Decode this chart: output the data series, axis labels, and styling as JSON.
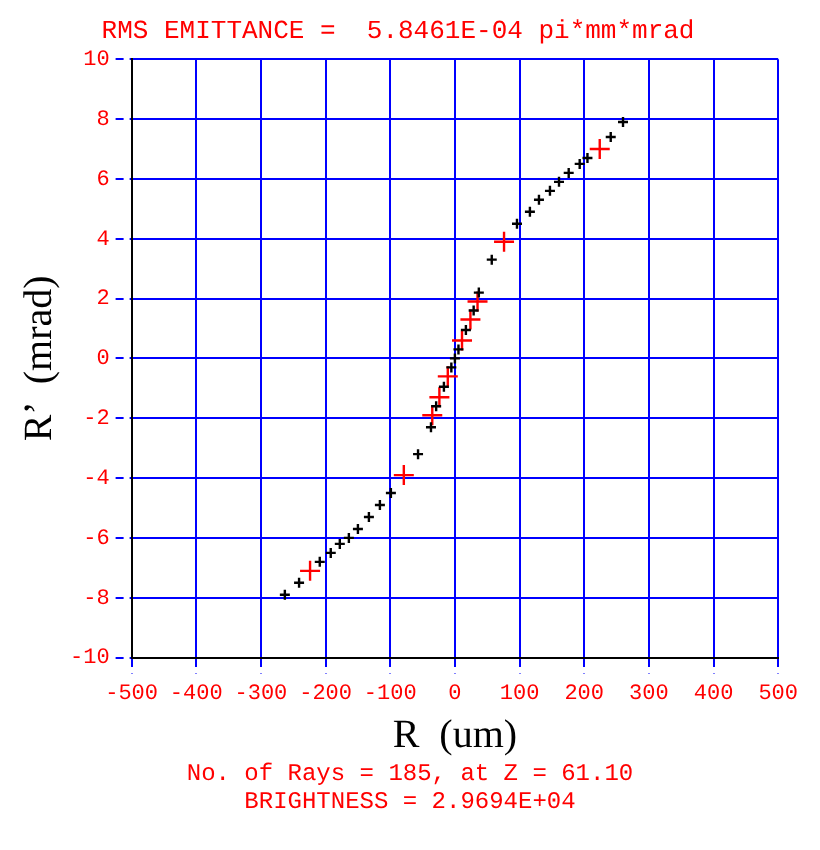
{
  "chart_data": {
    "type": "scatter",
    "title": "RMS EMITTANCE =  5.8461E-04 pi*mm*mrad",
    "xlabel": "R  (um)",
    "ylabel": "R’  (mrad)",
    "annotations": [
      "No. of Rays =  185, at Z =  61.10",
      "BRIGHTNESS =  2.9694E+04"
    ],
    "xlim": [
      -500,
      500
    ],
    "xticks": [
      -500,
      -400,
      -300,
      -200,
      -100,
      0,
      100,
      200,
      300,
      400,
      500
    ],
    "ylim": [
      -10,
      10
    ],
    "yticks": [
      -10,
      -8,
      -6,
      -4,
      -2,
      0,
      2,
      4,
      6,
      8,
      10
    ],
    "grid": true,
    "legend": false,
    "marker": "cross",
    "series": [
      {
        "color": "#000000",
        "x": [
          -263,
          -241,
          -209,
          -192,
          -178,
          -164,
          -150,
          -133,
          -116,
          -99,
          -57,
          -37,
          -29,
          -17,
          -5.5,
          0,
          5.5,
          17,
          29,
          37,
          57,
          96,
          116,
          130,
          147,
          161,
          176,
          193,
          205,
          241,
          260
        ],
        "values": [
          -7.9,
          -7.5,
          -6.8,
          -6.5,
          -6.2,
          -6.0,
          -5.7,
          -5.3,
          -4.9,
          -4.5,
          -3.2,
          -2.3,
          -1.6,
          -0.95,
          -0.3,
          0.0,
          0.3,
          0.95,
          1.6,
          2.2,
          3.3,
          4.5,
          4.9,
          5.3,
          5.6,
          5.9,
          6.2,
          6.5,
          6.7,
          7.4,
          7.9
        ]
      },
      {
        "color": "#ff0000",
        "x": [
          -224,
          -79,
          -35,
          -24,
          -11,
          11,
          24,
          35,
          76,
          224
        ],
        "values": [
          -7.1,
          -3.9,
          -1.9,
          -1.3,
          -0.6,
          0.6,
          1.3,
          1.9,
          3.9,
          7.0
        ]
      }
    ]
  }
}
